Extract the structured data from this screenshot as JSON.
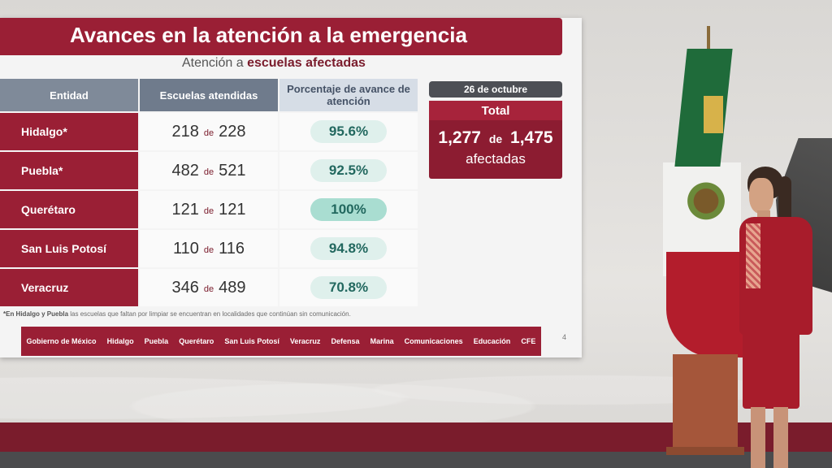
{
  "slide": {
    "title": "Avances en la atención a la emergencia",
    "subtitle_prefix": "Atención a",
    "subtitle_bold": "escuelas afectadas",
    "headers": {
      "entidad": "Entidad",
      "escuelas": "Escuelas atendidas",
      "porcentaje": "Porcentaje de avance de atención"
    },
    "connector": "de",
    "rows": [
      {
        "entidad": "Hidalgo*",
        "atendidas": "218",
        "total": "228",
        "pct": "95.6%"
      },
      {
        "entidad": "Puebla*",
        "atendidas": "482",
        "total": "521",
        "pct": "92.5%"
      },
      {
        "entidad": "Querétaro",
        "atendidas": "121",
        "total": "121",
        "pct": "100%"
      },
      {
        "entidad": "San Luis Potosí",
        "atendidas": "110",
        "total": "116",
        "pct": "94.8%"
      },
      {
        "entidad": "Veracruz",
        "atendidas": "346",
        "total": "489",
        "pct": "70.8%"
      }
    ],
    "date": "26 de octubre",
    "total": {
      "label": "Total",
      "atendidas": "1,277",
      "total": "1,475",
      "sub": "afectadas"
    },
    "footnote_bold": "*En Hidalgo y Puebla",
    "footnote_rest": "las escuelas que faltan por limpiar se encuentran en localidades que continúan sin comunicación.",
    "logos": [
      "Gobierno de México",
      "Hidalgo",
      "Puebla",
      "Querétaro",
      "San Luis Potosí",
      "Veracruz",
      "Defensa",
      "Marina",
      "Comunicaciones",
      "Educación",
      "CFE"
    ],
    "page_number": "4"
  },
  "colors": {
    "maroon": "#9a1f35",
    "accent_green": "#22685f",
    "header_gray": "#6f7b8c"
  }
}
